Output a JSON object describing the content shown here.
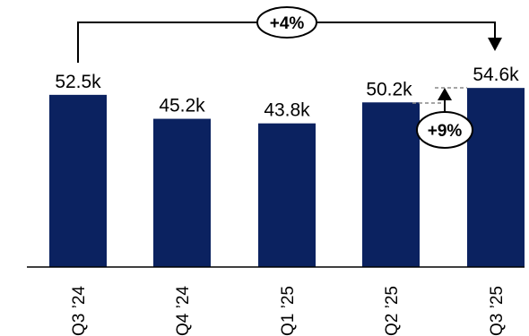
{
  "chart_data": {
    "type": "bar",
    "categories": [
      "Q3 ’24",
      "Q4 ’24",
      "Q1 ’25",
      "Q2 ’25",
      "Q3 ’25"
    ],
    "values": [
      52.5,
      45.2,
      43.8,
      50.2,
      54.6
    ],
    "value_labels": [
      "52.5k",
      "45.2k",
      "43.8k",
      "50.2k",
      "54.6k"
    ],
    "ylim": [
      0,
      65
    ],
    "bar_color": "#0b2260",
    "title": "",
    "xlabel": "",
    "ylabel": "",
    "annotations": [
      {
        "text": "+4%",
        "from": "Q3 ’24",
        "to": "Q3 ’25"
      },
      {
        "text": "+9%",
        "from": "Q2 ’25",
        "to": "Q3 ’25"
      }
    ]
  }
}
